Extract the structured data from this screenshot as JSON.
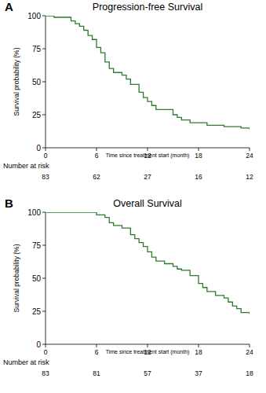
{
  "chart_data": [
    {
      "type": "line",
      "line_style": "step",
      "title": "Progression-free Survival",
      "annotations": [
        "A"
      ],
      "x_label": "Time since treatment start (month)",
      "y_label": "Survival probability (%)",
      "xlim": [
        0,
        24
      ],
      "xticks": [
        0,
        6,
        12,
        18,
        24
      ],
      "ylim": [
        0,
        100
      ],
      "yticks": [
        0,
        25,
        50,
        75,
        100
      ],
      "grid": false,
      "x": [
        0,
        1,
        3,
        3.5,
        4,
        4.5,
        5,
        5.5,
        6,
        6.5,
        7,
        7.5,
        8,
        9,
        9.5,
        10,
        11,
        11.5,
        12,
        12.5,
        13,
        15,
        15.5,
        16,
        17,
        19,
        21,
        23,
        24
      ],
      "series": [
        {
          "color": "#2f7a2f",
          "values": [
            100,
            98.8,
            96,
            94,
            92,
            89,
            85,
            82,
            76,
            72,
            65,
            60,
            57,
            55,
            52,
            48,
            42,
            38,
            35,
            32,
            29,
            25,
            23,
            21,
            19,
            17,
            16,
            15,
            14
          ]
        }
      ],
      "at_risk": {
        "label": "Number at risk",
        "x": [
          0,
          6,
          12,
          18,
          24
        ],
        "values": [
          83,
          62,
          27,
          16,
          12
        ]
      }
    },
    {
      "type": "line",
      "line_style": "step",
      "title": "Overall Survival",
      "annotations": [
        "B"
      ],
      "x_label": "Time since treatment start (month)",
      "y_label": "Survival probability (%)",
      "xlim": [
        0,
        24
      ],
      "xticks": [
        0,
        6,
        12,
        18,
        24
      ],
      "ylim": [
        0,
        100
      ],
      "yticks": [
        0,
        25,
        50,
        75,
        100
      ],
      "grid": false,
      "x": [
        0,
        6,
        7,
        7.5,
        8,
        9,
        10,
        10.5,
        11,
        11.5,
        12,
        12.5,
        13,
        14,
        15,
        15.5,
        16,
        17,
        18,
        18.5,
        19,
        20,
        21,
        21.5,
        22,
        22.5,
        23,
        24
      ],
      "series": [
        {
          "color": "#2f7a2f",
          "values": [
            100,
            98,
            96,
            92,
            90,
            88,
            83,
            80,
            77,
            74,
            70,
            66,
            63,
            61,
            59,
            57,
            56,
            52,
            46,
            43,
            40,
            37,
            35,
            32,
            29,
            27,
            24,
            23
          ]
        }
      ],
      "at_risk": {
        "label": "Number at risk",
        "x": [
          0,
          6,
          12,
          18,
          24
        ],
        "values": [
          83,
          81,
          57,
          37,
          18
        ]
      }
    }
  ]
}
